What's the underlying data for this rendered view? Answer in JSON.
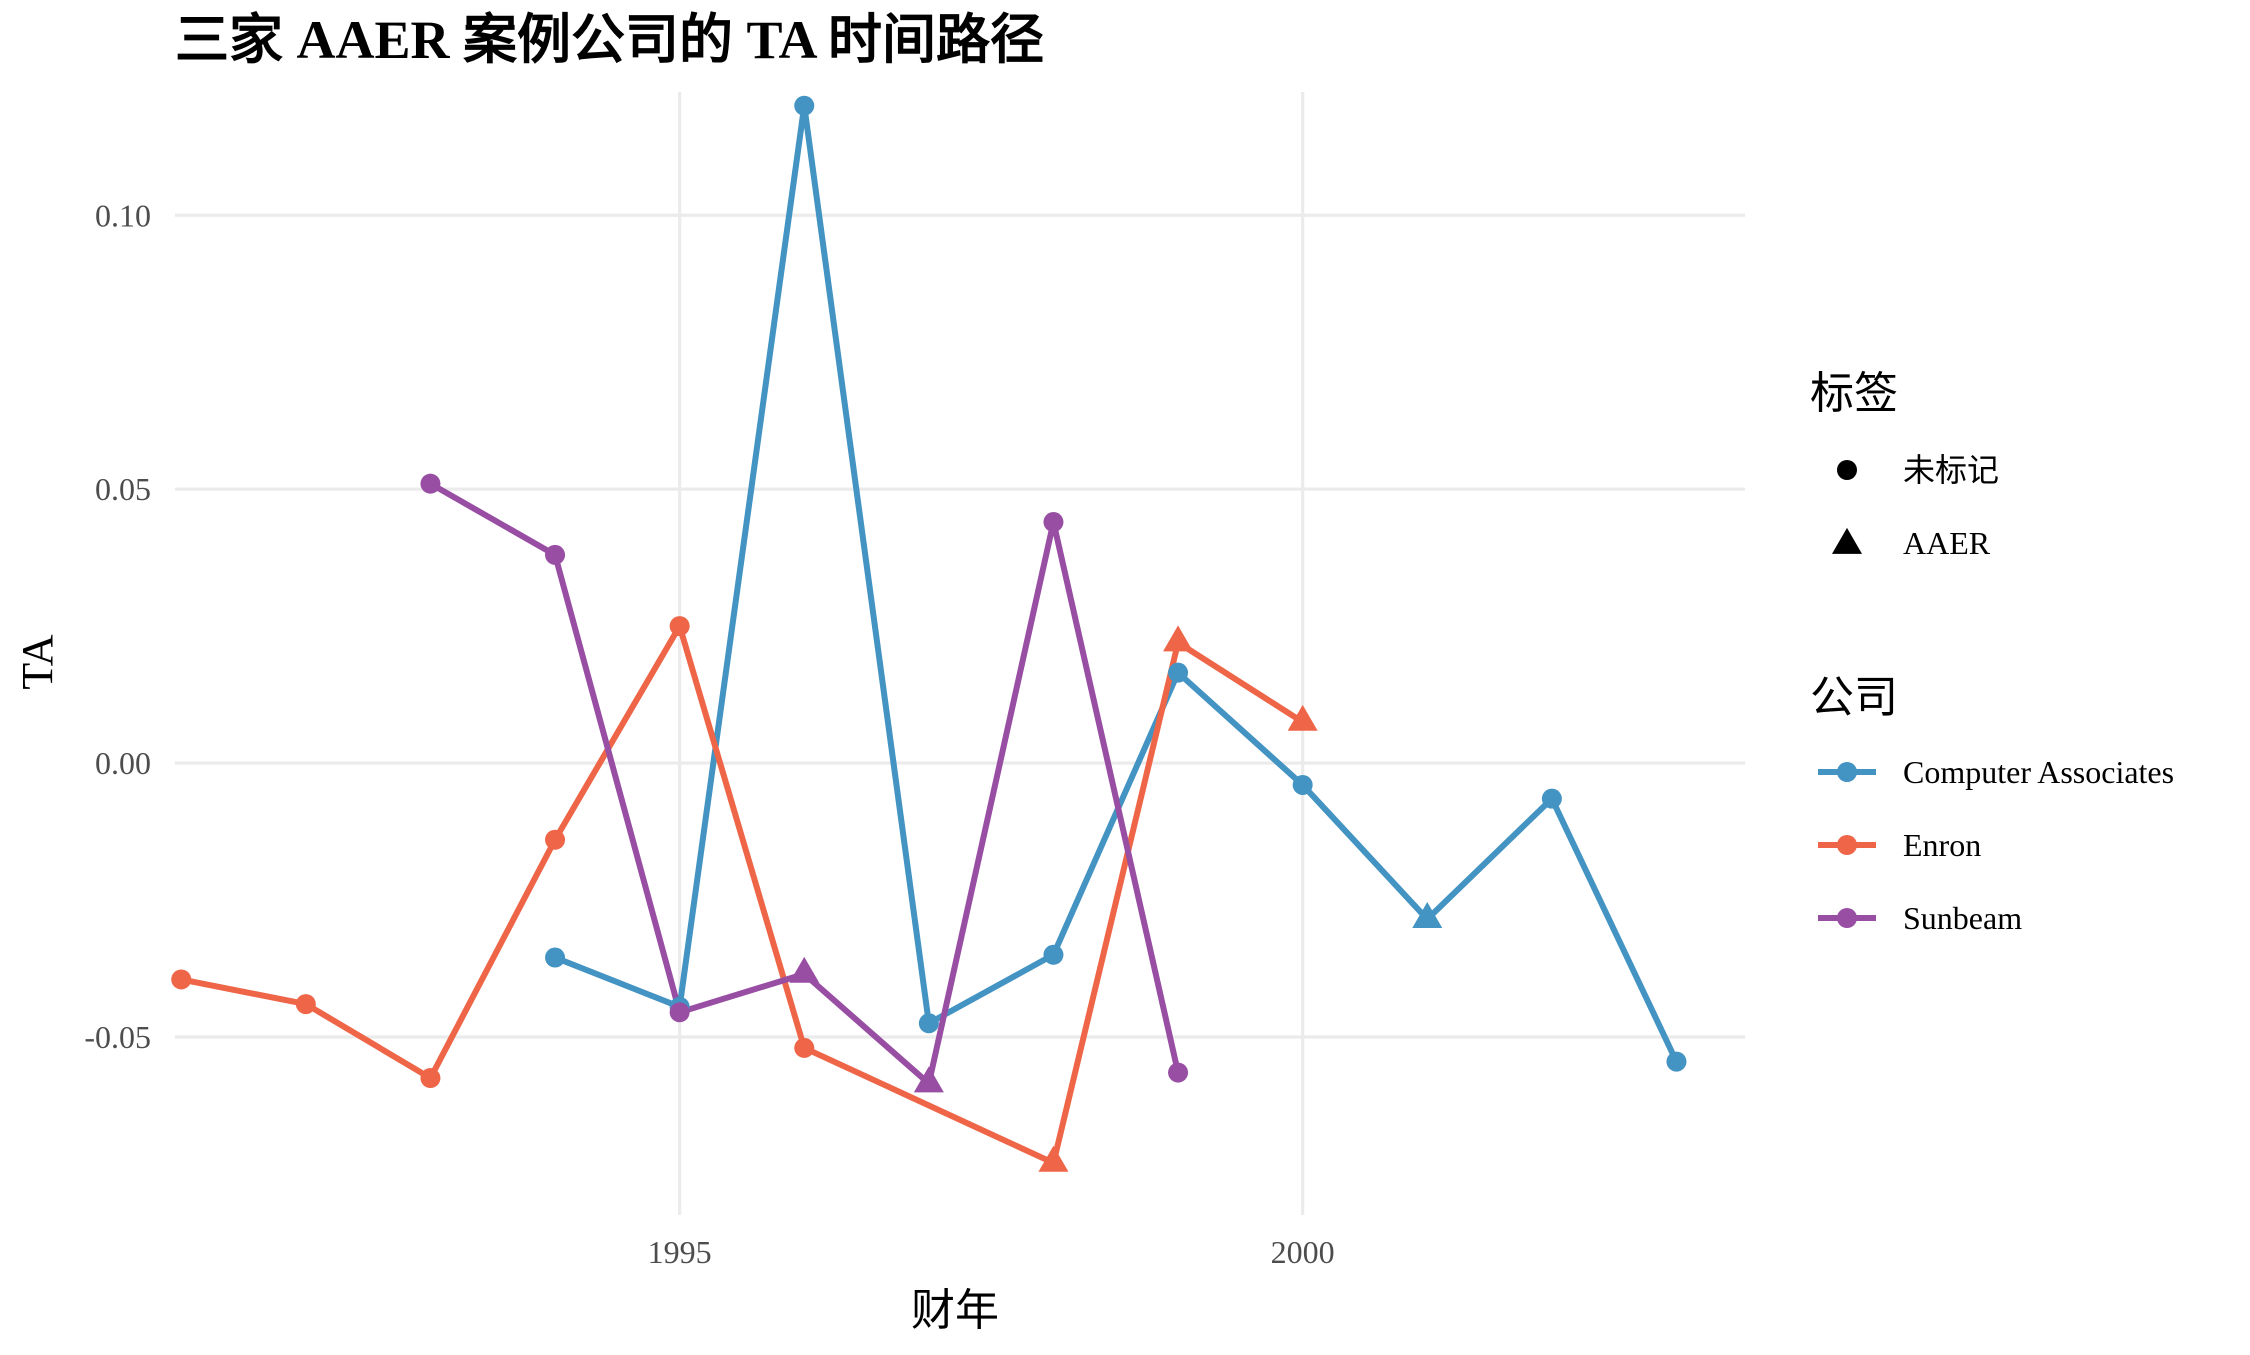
{
  "chart_data": {
    "type": "line",
    "title": "三家 AAER 案例公司的 TA 时间路径",
    "xlabel": "财年",
    "ylabel": "TA",
    "xlim": [
      1990.95,
      2003.55
    ],
    "ylim": [
      -0.0825,
      0.1225
    ],
    "x_ticks": [
      1995,
      2000
    ],
    "x_tick_labels": [
      "1995",
      "2000"
    ],
    "y_ticks": [
      -0.05,
      0.0,
      0.05,
      0.1
    ],
    "y_tick_labels": [
      "-0.05",
      "0.00",
      "0.05",
      "0.10"
    ],
    "grid": true,
    "legend_position": "right",
    "series": [
      {
        "name": "Computer Associates",
        "color": "#4393c3",
        "points": [
          {
            "x": 1994,
            "y": -0.0355,
            "label": "未标记"
          },
          {
            "x": 1995,
            "y": -0.0445,
            "label": "未标记"
          },
          {
            "x": 1996,
            "y": 0.12,
            "label": "未标记"
          },
          {
            "x": 1997,
            "y": -0.0475,
            "label": "未标记"
          },
          {
            "x": 1998,
            "y": -0.035,
            "label": "未标记"
          },
          {
            "x": 1999,
            "y": 0.0165,
            "label": "未标记"
          },
          {
            "x": 2000,
            "y": -0.004,
            "label": "未标记"
          },
          {
            "x": 2001,
            "y": -0.0285,
            "label": "AAER"
          },
          {
            "x": 2002,
            "y": -0.0065,
            "label": "未标记"
          },
          {
            "x": 2003,
            "y": -0.0545,
            "label": "未标记"
          }
        ]
      },
      {
        "name": "Enron",
        "color": "#ef6548",
        "points": [
          {
            "x": 1991,
            "y": -0.0395,
            "label": "未标记"
          },
          {
            "x": 1992,
            "y": -0.044,
            "label": "未标记"
          },
          {
            "x": 1993,
            "y": -0.0575,
            "label": "未标记"
          },
          {
            "x": 1994,
            "y": -0.014,
            "label": "未标记"
          },
          {
            "x": 1995,
            "y": 0.025,
            "label": "未标记"
          },
          {
            "x": 1996,
            "y": -0.052,
            "label": "未标记"
          },
          {
            "x": 1998,
            "y": -0.073,
            "label": "AAER"
          },
          {
            "x": 1999,
            "y": 0.022,
            "label": "AAER"
          },
          {
            "x": 2000,
            "y": 0.0075,
            "label": "AAER"
          }
        ]
      },
      {
        "name": "Sunbeam",
        "color": "#984ea3",
        "points": [
          {
            "x": 1993,
            "y": 0.051,
            "label": "未标记"
          },
          {
            "x": 1994,
            "y": 0.038,
            "label": "未标记"
          },
          {
            "x": 1995,
            "y": -0.0455,
            "label": "未标记"
          },
          {
            "x": 1996,
            "y": -0.0385,
            "label": "AAER"
          },
          {
            "x": 1997,
            "y": -0.0585,
            "label": "AAER"
          },
          {
            "x": 1998,
            "y": 0.044,
            "label": "未标记"
          },
          {
            "x": 1999,
            "y": -0.0565,
            "label": "未标记"
          }
        ]
      }
    ],
    "legend": {
      "shape_title": "标签",
      "shape_items": [
        {
          "label": "未标记",
          "shape": "circle"
        },
        {
          "label": "AAER",
          "shape": "triangle"
        }
      ],
      "color_title": "公司",
      "color_items": [
        {
          "label": "Computer Associates",
          "color": "#4393c3"
        },
        {
          "label": "Enron",
          "color": "#ef6548"
        },
        {
          "label": "Sunbeam",
          "color": "#984ea3"
        }
      ]
    }
  }
}
